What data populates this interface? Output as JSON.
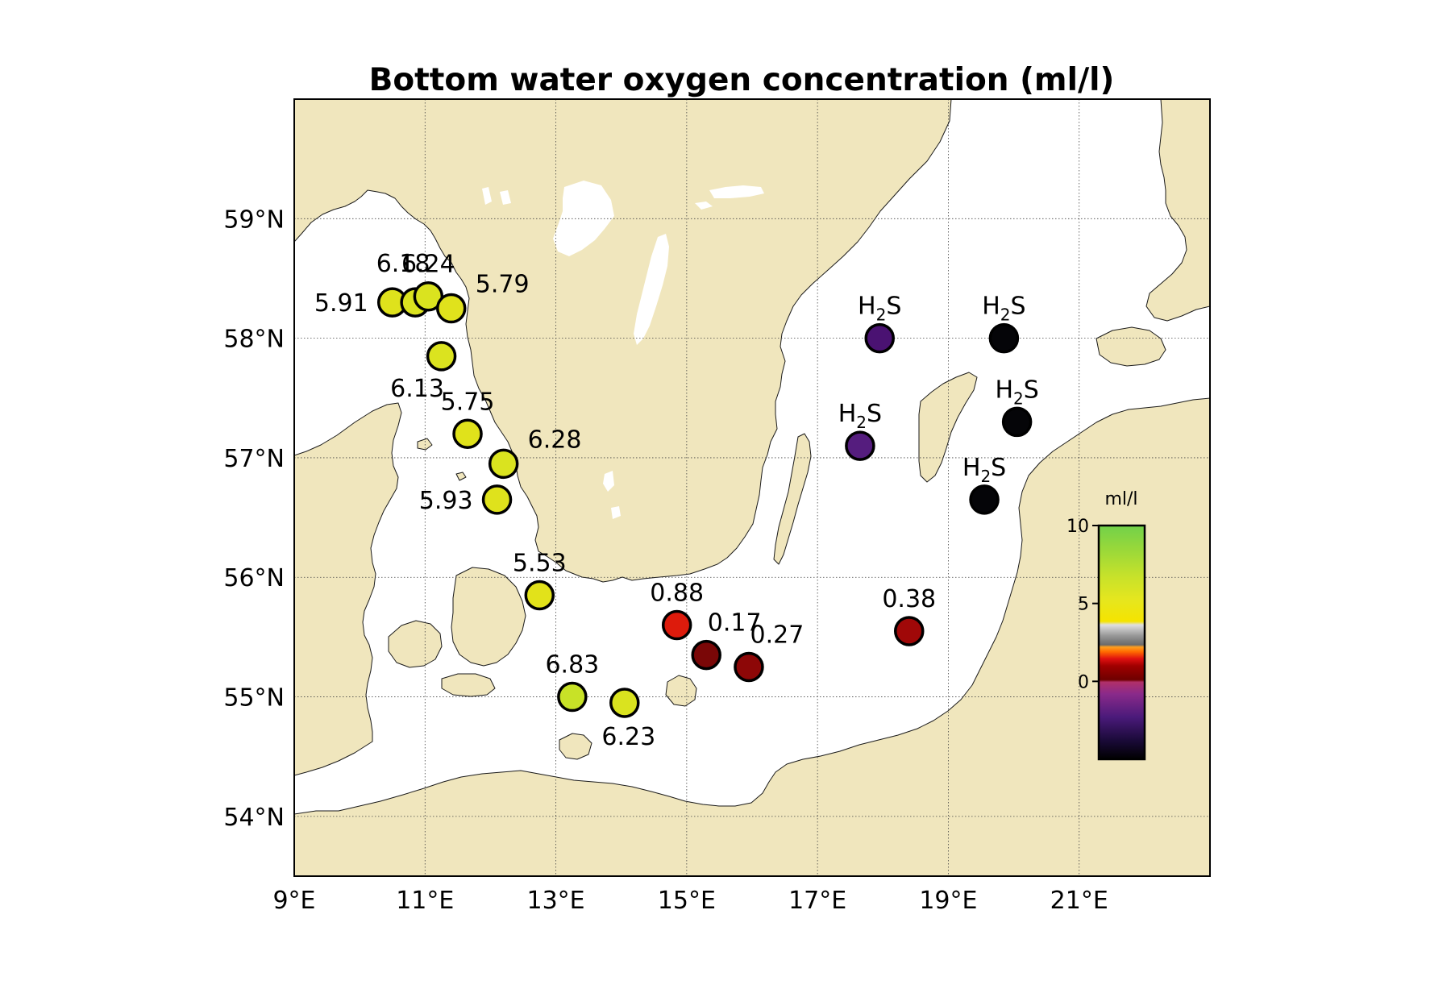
{
  "title": "Bottom water oxygen concentration (ml/l)",
  "colors": {
    "land": "#f0e6bd",
    "sea": "#ffffff",
    "coast": "#1a1a1a"
  },
  "axes": {
    "lon_range": [
      9,
      23
    ],
    "lat_range": [
      53.5,
      60
    ],
    "x_ticks": [
      {
        "value": 9,
        "label": "9°E"
      },
      {
        "value": 11,
        "label": "11°E"
      },
      {
        "value": 13,
        "label": "13°E"
      },
      {
        "value": 15,
        "label": "15°E"
      },
      {
        "value": 17,
        "label": "17°E"
      },
      {
        "value": 19,
        "label": "19°E"
      },
      {
        "value": 21,
        "label": "21°E"
      }
    ],
    "y_ticks": [
      {
        "value": 54,
        "label": "54°N"
      },
      {
        "value": 55,
        "label": "55°N"
      },
      {
        "value": 56,
        "label": "56°N"
      },
      {
        "value": 57,
        "label": "57°N"
      },
      {
        "value": 58,
        "label": "58°N"
      },
      {
        "value": 59,
        "label": "59°N"
      }
    ],
    "grid": "dotted"
  },
  "colorbar": {
    "unit": "ml/l",
    "range": [
      -5,
      10
    ],
    "ticks": [
      {
        "value": 10,
        "label": "10"
      },
      {
        "value": 5,
        "label": "5"
      },
      {
        "value": 0,
        "label": "0"
      }
    ],
    "placement": "lower-right inset"
  },
  "chart_data": {
    "type": "scatter",
    "title": "Bottom water oxygen concentration (ml/l)",
    "xlabel": "",
    "ylabel": "",
    "xlim": [
      9,
      23
    ],
    "ylim": [
      53.5,
      60
    ],
    "value_unit": "ml/l",
    "stations": [
      {
        "lon": 10.5,
        "lat": 58.3,
        "value": 5.91,
        "label": "5.91",
        "color": "#dfe21c",
        "label_pos": "left"
      },
      {
        "lon": 10.85,
        "lat": 58.3,
        "value": 6.18,
        "label": "6.18",
        "color": "#dbe31f",
        "label_pos": "above-left"
      },
      {
        "lon": 11.05,
        "lat": 58.35,
        "value": 6.24,
        "label": "6.24",
        "color": "#dae31f",
        "label_pos": "above"
      },
      {
        "lon": 11.4,
        "lat": 58.25,
        "value": 5.79,
        "label": "5.79",
        "color": "#e0e21c",
        "label_pos": "right-above"
      },
      {
        "lon": 11.25,
        "lat": 57.85,
        "value": 6.13,
        "label": "6.13",
        "color": "#dbe31f",
        "label_pos": "below-left"
      },
      {
        "lon": 11.65,
        "lat": 57.2,
        "value": 5.75,
        "label": "5.75",
        "color": "#e0e21b",
        "label_pos": "above"
      },
      {
        "lon": 12.2,
        "lat": 56.95,
        "value": 6.28,
        "label": "6.28",
        "color": "#dae31f",
        "label_pos": "right-above"
      },
      {
        "lon": 12.1,
        "lat": 56.65,
        "value": 5.93,
        "label": "5.93",
        "color": "#dfe21c",
        "label_pos": "left"
      },
      {
        "lon": 12.75,
        "lat": 55.85,
        "value": 5.53,
        "label": "5.53",
        "color": "#e2e21a",
        "label_pos": "above"
      },
      {
        "lon": 13.25,
        "lat": 55.0,
        "value": 6.83,
        "label": "6.83",
        "color": "#c8e227",
        "label_pos": "above"
      },
      {
        "lon": 14.05,
        "lat": 54.95,
        "value": 6.23,
        "label": "6.23",
        "color": "#dae31f",
        "label_pos": "below"
      },
      {
        "lon": 14.85,
        "lat": 55.6,
        "value": 0.88,
        "label": "0.88",
        "color": "#dd1b0c",
        "label_pos": "above"
      },
      {
        "lon": 15.3,
        "lat": 55.35,
        "value": 0.17,
        "label": "0.17",
        "color": "#7a0707",
        "label_pos": "above-right"
      },
      {
        "lon": 15.95,
        "lat": 55.25,
        "value": 0.27,
        "label": "0.27",
        "color": "#8d0707",
        "label_pos": "above-right"
      },
      {
        "lon": 18.4,
        "lat": 55.55,
        "value": 0.38,
        "label": "0.38",
        "color": "#a00808",
        "label_pos": "above"
      },
      {
        "lon": 17.95,
        "lat": 58.0,
        "value": null,
        "label": "H2S",
        "color": "#4a1272",
        "label_pos": "above"
      },
      {
        "lon": 17.65,
        "lat": 57.1,
        "value": null,
        "label": "H2S",
        "color": "#551d7e",
        "label_pos": "above"
      },
      {
        "lon": 19.85,
        "lat": 58.0,
        "value": null,
        "label": "H2S",
        "color": "#050508",
        "label_pos": "above"
      },
      {
        "lon": 20.05,
        "lat": 57.3,
        "value": null,
        "label": "H2S",
        "color": "#050508",
        "label_pos": "above"
      },
      {
        "lon": 19.55,
        "lat": 56.65,
        "value": null,
        "label": "H2S",
        "color": "#050508",
        "label_pos": "above"
      }
    ]
  }
}
